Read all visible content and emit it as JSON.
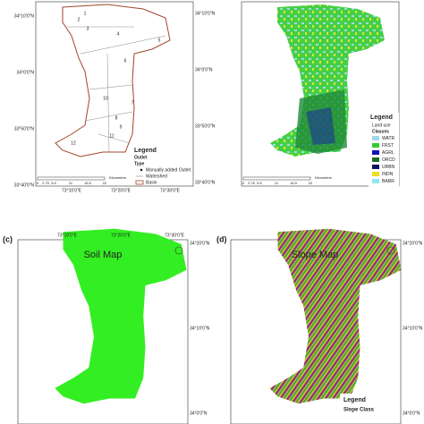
{
  "panels": [
    {
      "lat_labels_left": [
        "34°10'0\"N",
        "34°0'0\"N",
        "33°50'0\"N",
        "33°40'0\"N"
      ],
      "lat_labels_right": [
        "34°10'0\"N",
        "34°0'0\"N",
        "33°50'0\"N",
        "33°40'0\"N"
      ],
      "lon_labels": [
        "73°10'0\"E",
        "73°20'0\"E",
        "73°30'0\"E"
      ],
      "subbasins": [
        "1",
        "2",
        "3",
        "4",
        "5",
        "6",
        "7",
        "8",
        "9",
        "10",
        "11",
        "12"
      ],
      "legend": {
        "title": "Legend",
        "subtitle": "Outlet",
        "type": "Type",
        "items": [
          "Manually added Outlet",
          "Watershed",
          "Basin"
        ]
      },
      "scale": {
        "ticks": [
          "0",
          "2.75",
          "5.5",
          "11",
          "16.5",
          "22"
        ],
        "unit": "Kilometers"
      }
    },
    {
      "legend": {
        "title": "Legend",
        "subtitle": "Land use",
        "type": "Classes",
        "items": [
          "WATR",
          "FRST",
          "AGRL",
          "ORCD",
          "URBN",
          "INDN",
          "BARR"
        ]
      },
      "scale": {
        "ticks": [
          "0",
          "2.75",
          "5.5",
          "11",
          "16.5",
          "22"
        ],
        "unit": "Kilometers"
      }
    },
    {
      "label": "(c)",
      "title": "Soil Map",
      "lon_labels": [
        "73°10'0\"E",
        "73°20'0\"E",
        "73°30'0\"E"
      ],
      "lat_labels_right": [
        "34°20'0\"N",
        "34°10'0\"N",
        "34°0'0\"N"
      ]
    },
    {
      "label": "(d)",
      "title": "Slope Map",
      "lat_labels_right": [
        "34°20'0\"N",
        "34°10'0\"N",
        "34°0'0\"N"
      ],
      "legend": {
        "title": "Legend",
        "subtitle": "Slope Class"
      }
    }
  ]
}
